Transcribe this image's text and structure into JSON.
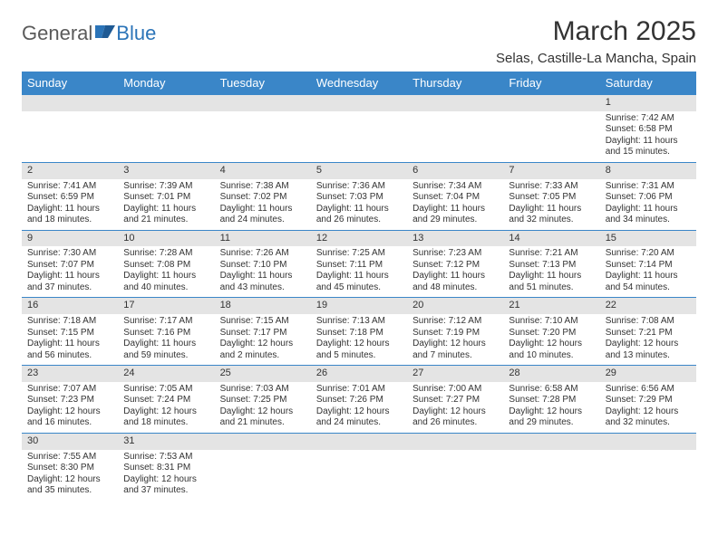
{
  "logo": {
    "part1": "General",
    "part2": "Blue"
  },
  "title": "March 2025",
  "location": "Selas, Castille-La Mancha, Spain",
  "colors": {
    "header_bg": "#3a86c8",
    "header_text": "#ffffff",
    "daynum_bg": "#e4e4e4",
    "border": "#3a86c8",
    "text": "#333333"
  },
  "weekdays": [
    "Sunday",
    "Monday",
    "Tuesday",
    "Wednesday",
    "Thursday",
    "Friday",
    "Saturday"
  ],
  "weeks": [
    {
      "nums": [
        "",
        "",
        "",
        "",
        "",
        "",
        "1"
      ],
      "details": [
        null,
        null,
        null,
        null,
        null,
        null,
        {
          "sunrise": "Sunrise: 7:42 AM",
          "sunset": "Sunset: 6:58 PM",
          "daylight": "Daylight: 11 hours and 15 minutes."
        }
      ]
    },
    {
      "nums": [
        "2",
        "3",
        "4",
        "5",
        "6",
        "7",
        "8"
      ],
      "details": [
        {
          "sunrise": "Sunrise: 7:41 AM",
          "sunset": "Sunset: 6:59 PM",
          "daylight": "Daylight: 11 hours and 18 minutes."
        },
        {
          "sunrise": "Sunrise: 7:39 AM",
          "sunset": "Sunset: 7:01 PM",
          "daylight": "Daylight: 11 hours and 21 minutes."
        },
        {
          "sunrise": "Sunrise: 7:38 AM",
          "sunset": "Sunset: 7:02 PM",
          "daylight": "Daylight: 11 hours and 24 minutes."
        },
        {
          "sunrise": "Sunrise: 7:36 AM",
          "sunset": "Sunset: 7:03 PM",
          "daylight": "Daylight: 11 hours and 26 minutes."
        },
        {
          "sunrise": "Sunrise: 7:34 AM",
          "sunset": "Sunset: 7:04 PM",
          "daylight": "Daylight: 11 hours and 29 minutes."
        },
        {
          "sunrise": "Sunrise: 7:33 AM",
          "sunset": "Sunset: 7:05 PM",
          "daylight": "Daylight: 11 hours and 32 minutes."
        },
        {
          "sunrise": "Sunrise: 7:31 AM",
          "sunset": "Sunset: 7:06 PM",
          "daylight": "Daylight: 11 hours and 34 minutes."
        }
      ]
    },
    {
      "nums": [
        "9",
        "10",
        "11",
        "12",
        "13",
        "14",
        "15"
      ],
      "details": [
        {
          "sunrise": "Sunrise: 7:30 AM",
          "sunset": "Sunset: 7:07 PM",
          "daylight": "Daylight: 11 hours and 37 minutes."
        },
        {
          "sunrise": "Sunrise: 7:28 AM",
          "sunset": "Sunset: 7:08 PM",
          "daylight": "Daylight: 11 hours and 40 minutes."
        },
        {
          "sunrise": "Sunrise: 7:26 AM",
          "sunset": "Sunset: 7:10 PM",
          "daylight": "Daylight: 11 hours and 43 minutes."
        },
        {
          "sunrise": "Sunrise: 7:25 AM",
          "sunset": "Sunset: 7:11 PM",
          "daylight": "Daylight: 11 hours and 45 minutes."
        },
        {
          "sunrise": "Sunrise: 7:23 AM",
          "sunset": "Sunset: 7:12 PM",
          "daylight": "Daylight: 11 hours and 48 minutes."
        },
        {
          "sunrise": "Sunrise: 7:21 AM",
          "sunset": "Sunset: 7:13 PM",
          "daylight": "Daylight: 11 hours and 51 minutes."
        },
        {
          "sunrise": "Sunrise: 7:20 AM",
          "sunset": "Sunset: 7:14 PM",
          "daylight": "Daylight: 11 hours and 54 minutes."
        }
      ]
    },
    {
      "nums": [
        "16",
        "17",
        "18",
        "19",
        "20",
        "21",
        "22"
      ],
      "details": [
        {
          "sunrise": "Sunrise: 7:18 AM",
          "sunset": "Sunset: 7:15 PM",
          "daylight": "Daylight: 11 hours and 56 minutes."
        },
        {
          "sunrise": "Sunrise: 7:17 AM",
          "sunset": "Sunset: 7:16 PM",
          "daylight": "Daylight: 11 hours and 59 minutes."
        },
        {
          "sunrise": "Sunrise: 7:15 AM",
          "sunset": "Sunset: 7:17 PM",
          "daylight": "Daylight: 12 hours and 2 minutes."
        },
        {
          "sunrise": "Sunrise: 7:13 AM",
          "sunset": "Sunset: 7:18 PM",
          "daylight": "Daylight: 12 hours and 5 minutes."
        },
        {
          "sunrise": "Sunrise: 7:12 AM",
          "sunset": "Sunset: 7:19 PM",
          "daylight": "Daylight: 12 hours and 7 minutes."
        },
        {
          "sunrise": "Sunrise: 7:10 AM",
          "sunset": "Sunset: 7:20 PM",
          "daylight": "Daylight: 12 hours and 10 minutes."
        },
        {
          "sunrise": "Sunrise: 7:08 AM",
          "sunset": "Sunset: 7:21 PM",
          "daylight": "Daylight: 12 hours and 13 minutes."
        }
      ]
    },
    {
      "nums": [
        "23",
        "24",
        "25",
        "26",
        "27",
        "28",
        "29"
      ],
      "details": [
        {
          "sunrise": "Sunrise: 7:07 AM",
          "sunset": "Sunset: 7:23 PM",
          "daylight": "Daylight: 12 hours and 16 minutes."
        },
        {
          "sunrise": "Sunrise: 7:05 AM",
          "sunset": "Sunset: 7:24 PM",
          "daylight": "Daylight: 12 hours and 18 minutes."
        },
        {
          "sunrise": "Sunrise: 7:03 AM",
          "sunset": "Sunset: 7:25 PM",
          "daylight": "Daylight: 12 hours and 21 minutes."
        },
        {
          "sunrise": "Sunrise: 7:01 AM",
          "sunset": "Sunset: 7:26 PM",
          "daylight": "Daylight: 12 hours and 24 minutes."
        },
        {
          "sunrise": "Sunrise: 7:00 AM",
          "sunset": "Sunset: 7:27 PM",
          "daylight": "Daylight: 12 hours and 26 minutes."
        },
        {
          "sunrise": "Sunrise: 6:58 AM",
          "sunset": "Sunset: 7:28 PM",
          "daylight": "Daylight: 12 hours and 29 minutes."
        },
        {
          "sunrise": "Sunrise: 6:56 AM",
          "sunset": "Sunset: 7:29 PM",
          "daylight": "Daylight: 12 hours and 32 minutes."
        }
      ]
    },
    {
      "nums": [
        "30",
        "31",
        "",
        "",
        "",
        "",
        ""
      ],
      "details": [
        {
          "sunrise": "Sunrise: 7:55 AM",
          "sunset": "Sunset: 8:30 PM",
          "daylight": "Daylight: 12 hours and 35 minutes."
        },
        {
          "sunrise": "Sunrise: 7:53 AM",
          "sunset": "Sunset: 8:31 PM",
          "daylight": "Daylight: 12 hours and 37 minutes."
        },
        null,
        null,
        null,
        null,
        null
      ]
    }
  ]
}
